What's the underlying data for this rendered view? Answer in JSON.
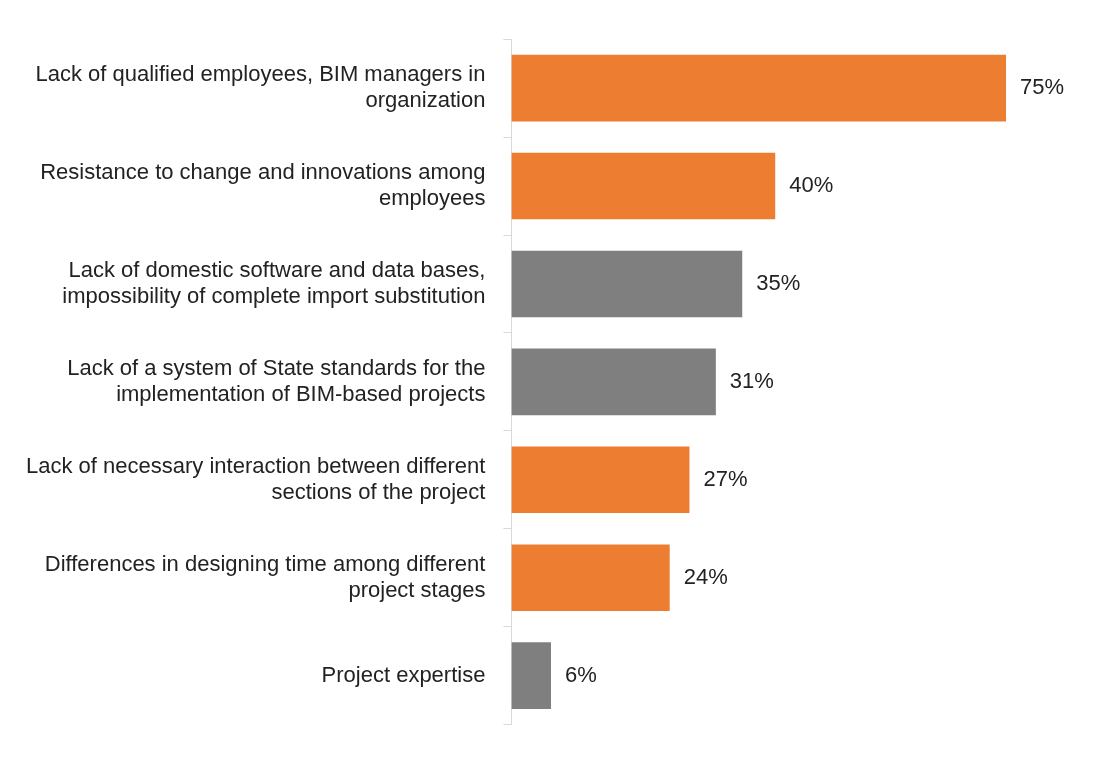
{
  "chart_data": {
    "type": "bar",
    "orientation": "horizontal",
    "categories": [
      "Lack of qualified employees, BIM managers in organization",
      "Resistance to change and innovations among employees",
      "Lack of domestic software and data bases, impossibility of complete import substitution",
      "Lack of a system of State standards for the implementation of BIM-based projects",
      "Lack of necessary interaction between different sections of the project",
      "Differences in designing time among different project stages",
      "Project expertise"
    ],
    "values": [
      75,
      40,
      35,
      31,
      27,
      24,
      6
    ],
    "colors": [
      "#ed7d31",
      "#ed7d31",
      "#7f7f7f",
      "#7f7f7f",
      "#ed7d31",
      "#ed7d31",
      "#7f7f7f"
    ],
    "value_labels": [
      "75%",
      "40%",
      "35%",
      "31%",
      "27%",
      "24%",
      "6%"
    ],
    "tick_labels": "y",
    "legend": false
  }
}
